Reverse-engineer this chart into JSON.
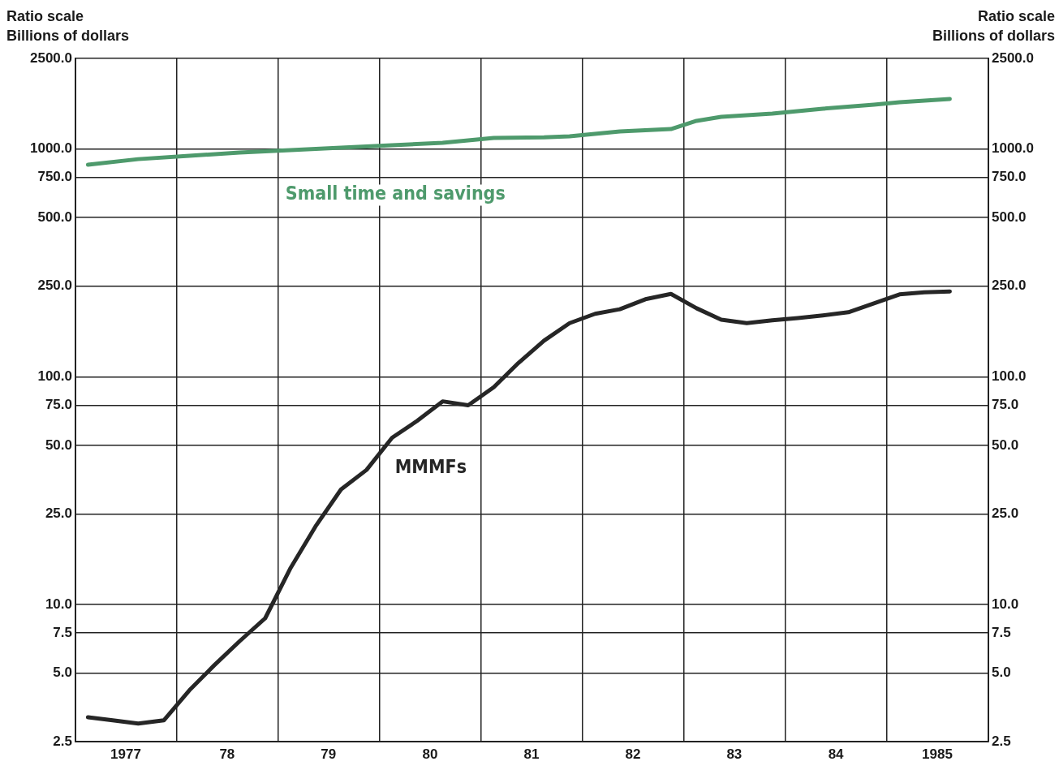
{
  "chart_data": {
    "type": "line",
    "ylabel": "Ratio scale\nBillions of dollars",
    "y2label": "Ratio scale\nBillions of dollars",
    "log": true,
    "grid": true,
    "legend": false,
    "marker": "none",
    "line_style": "solid",
    "xlim": [
      "1977-01-01",
      "1986-01-01"
    ],
    "xticks": [
      {
        "value": "1977-07-01",
        "label": "1977"
      },
      {
        "value": "1978-01-01",
        "label": null
      },
      {
        "value": "1978-07-01",
        "label": "78"
      },
      {
        "value": "1979-01-01",
        "label": null
      },
      {
        "value": "1979-07-01",
        "label": "79"
      },
      {
        "value": "1980-01-01",
        "label": null
      },
      {
        "value": "1980-07-01",
        "label": "80"
      },
      {
        "value": "1981-01-01",
        "label": null
      },
      {
        "value": "1981-07-01",
        "label": "81"
      },
      {
        "value": "1982-01-01",
        "label": null
      },
      {
        "value": "1982-07-01",
        "label": "82"
      },
      {
        "value": "1983-01-01",
        "label": null
      },
      {
        "value": "1983-07-01",
        "label": "83"
      },
      {
        "value": "1984-01-01",
        "label": null
      },
      {
        "value": "1984-07-01",
        "label": "84"
      },
      {
        "value": "1985-01-01",
        "label": null
      },
      {
        "value": "1985-07-01",
        "label": "1985"
      }
    ],
    "ylim": [
      2.5,
      2500
    ],
    "yticks": [
      {
        "value": 2.5,
        "label": "2.5"
      },
      {
        "value": 5,
        "label": "5.0"
      },
      {
        "value": 7.5,
        "label": "7.5"
      },
      {
        "value": 10,
        "label": "10.0"
      },
      {
        "value": 25,
        "label": "25.0"
      },
      {
        "value": 50,
        "label": "50.0"
      },
      {
        "value": 75,
        "label": "75.0"
      },
      {
        "value": 100,
        "label": "100.0"
      },
      {
        "value": 250,
        "label": "250.0"
      },
      {
        "value": 500,
        "label": "500.0"
      },
      {
        "value": 750,
        "label": "750.0"
      },
      {
        "value": 1000,
        "label": "1000.0"
      },
      {
        "value": 2500,
        "label": "2500.0"
      }
    ],
    "series": [
      {
        "name": "MMMFs",
        "color": "#262626",
        "x": [
          "1977-02-15",
          "1977-05-15",
          "1977-08-15",
          "1977-11-15",
          "1978-02-15",
          "1978-05-15",
          "1978-08-15",
          "1978-11-15",
          "1979-02-15",
          "1979-05-15",
          "1979-08-15",
          "1979-11-15",
          "1980-02-15",
          "1980-05-15",
          "1980-08-15",
          "1980-11-15",
          "1981-02-15",
          "1981-05-15",
          "1981-08-15",
          "1981-11-15",
          "1982-02-15",
          "1982-05-15",
          "1982-08-15",
          "1982-11-15",
          "1983-02-15",
          "1983-05-15",
          "1983-08-15",
          "1983-11-15",
          "1984-02-15",
          "1984-05-15",
          "1984-08-15",
          "1984-11-15",
          "1985-02-15",
          "1985-05-15",
          "1985-08-15"
        ],
        "values": [
          3.2,
          3.1,
          3.0,
          3.1,
          4.2,
          5.4,
          6.9,
          8.7,
          14.5,
          22,
          32,
          39,
          54,
          64,
          78,
          75,
          90,
          115,
          144,
          172,
          189,
          198,
          219,
          231,
          200,
          178,
          172,
          177,
          181,
          186,
          192,
          210,
          230,
          235,
          237
        ]
      },
      {
        "name": "Small time and savings",
        "color": "#4e9a6c",
        "x": [
          "1977-02-15",
          "1977-08-15",
          "1978-02-15",
          "1978-08-15",
          "1979-02-15",
          "1979-08-15",
          "1980-02-15",
          "1980-08-15",
          "1981-02-15",
          "1981-08-15",
          "1981-11-15",
          "1982-05-15",
          "1982-11-15",
          "1983-02-15",
          "1983-05-15",
          "1983-11-15",
          "1984-05-15",
          "1984-11-15",
          "1985-02-15",
          "1985-08-15"
        ],
        "values": [
          853,
          903,
          934,
          965,
          989,
          1014,
          1040,
          1065,
          1119,
          1125,
          1137,
          1195,
          1224,
          1330,
          1385,
          1431,
          1503,
          1566,
          1605,
          1659
        ]
      }
    ]
  }
}
